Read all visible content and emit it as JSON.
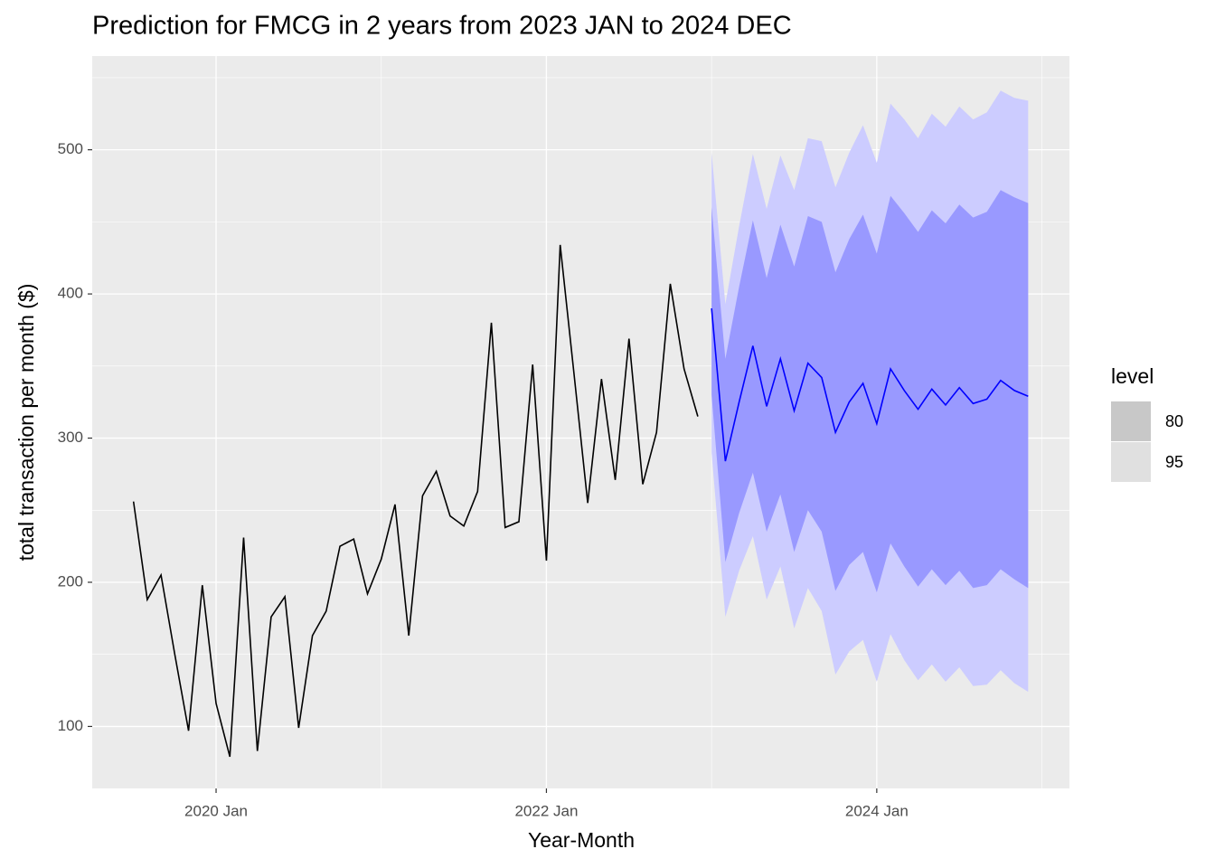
{
  "chart_data": {
    "type": "forecast",
    "title": "Prediction for FMCG in 2 years from 2023 JAN to 2024 DEC",
    "xlabel": "Year-Month",
    "ylabel": "total transaction per month ($)",
    "xlim": [
      "2019-04",
      "2025-03"
    ],
    "xticks": [
      {
        "value": "2020-01",
        "label": "2020 Jan"
      },
      {
        "value": "2022-01",
        "label": "2022 Jan"
      },
      {
        "value": "2024-01",
        "label": "2024 Jan"
      }
    ],
    "ylim": [
      57,
      565
    ],
    "yticks": [
      100,
      200,
      300,
      400,
      500
    ],
    "grid": true,
    "history": {
      "color": "#000000",
      "x": [
        "2019-07",
        "2019-08",
        "2019-09",
        "2019-10",
        "2019-11",
        "2019-12",
        "2020-01",
        "2020-02",
        "2020-03",
        "2020-04",
        "2020-05",
        "2020-06",
        "2020-07",
        "2020-08",
        "2020-09",
        "2020-10",
        "2020-11",
        "2020-12",
        "2021-01",
        "2021-02",
        "2021-03",
        "2021-04",
        "2021-05",
        "2021-06",
        "2021-07",
        "2021-08",
        "2021-09",
        "2021-10",
        "2021-11",
        "2021-12",
        "2022-01",
        "2022-02",
        "2022-03",
        "2022-04",
        "2022-05",
        "2022-06",
        "2022-07",
        "2022-08",
        "2022-09",
        "2022-10",
        "2022-11",
        "2022-12"
      ],
      "values": [
        256,
        188,
        205,
        150,
        97,
        198,
        116,
        79,
        231,
        83,
        176,
        190,
        99,
        163,
        180,
        225,
        230,
        192,
        216,
        254,
        163,
        260,
        277,
        246,
        239,
        263,
        380,
        238,
        242,
        351,
        215,
        434,
        345,
        255,
        341,
        271,
        369,
        268,
        304,
        407,
        348,
        315
      ]
    },
    "forecast": {
      "color": "#0000ff",
      "x": [
        "2023-01",
        "2023-02",
        "2023-03",
        "2023-04",
        "2023-05",
        "2023-06",
        "2023-07",
        "2023-08",
        "2023-09",
        "2023-10",
        "2023-11",
        "2023-12",
        "2024-01",
        "2024-02",
        "2024-03",
        "2024-04",
        "2024-05",
        "2024-06",
        "2024-07",
        "2024-08",
        "2024-09",
        "2024-10",
        "2024-11",
        "2024-12"
      ],
      "mean": [
        390,
        284,
        325,
        364,
        322,
        355,
        319,
        352,
        342,
        304,
        325,
        338,
        310,
        348,
        333,
        320,
        334,
        323,
        335,
        324,
        327,
        340,
        333,
        329
      ],
      "intervals": [
        {
          "level": 95,
          "color": "#ccccff",
          "lower": [
            290,
            176,
            208,
            232,
            188,
            211,
            168,
            196,
            180,
            136,
            152,
            160,
            131,
            164,
            146,
            132,
            143,
            131,
            141,
            128,
            129,
            139,
            130,
            124
          ],
          "upper": [
            498,
            393,
            447,
            497,
            459,
            496,
            472,
            508,
            506,
            474,
            498,
            517,
            491,
            532,
            521,
            508,
            525,
            516,
            530,
            521,
            526,
            541,
            536,
            534
          ]
        },
        {
          "level": 80,
          "color": "#9999ff",
          "lower": [
            330,
            214,
            248,
            276,
            235,
            261,
            221,
            250,
            235,
            194,
            212,
            221,
            193,
            227,
            211,
            197,
            209,
            198,
            208,
            196,
            198,
            209,
            202,
            196
          ],
          "upper": [
            460,
            355,
            405,
            451,
            411,
            448,
            419,
            454,
            450,
            415,
            438,
            455,
            428,
            468,
            456,
            443,
            458,
            449,
            462,
            453,
            457,
            472,
            467,
            463
          ]
        }
      ]
    },
    "legend": {
      "title": "level",
      "levels": [
        80,
        95
      ],
      "colors": [
        "#c8c8c8",
        "#e0e0e0"
      ]
    }
  }
}
